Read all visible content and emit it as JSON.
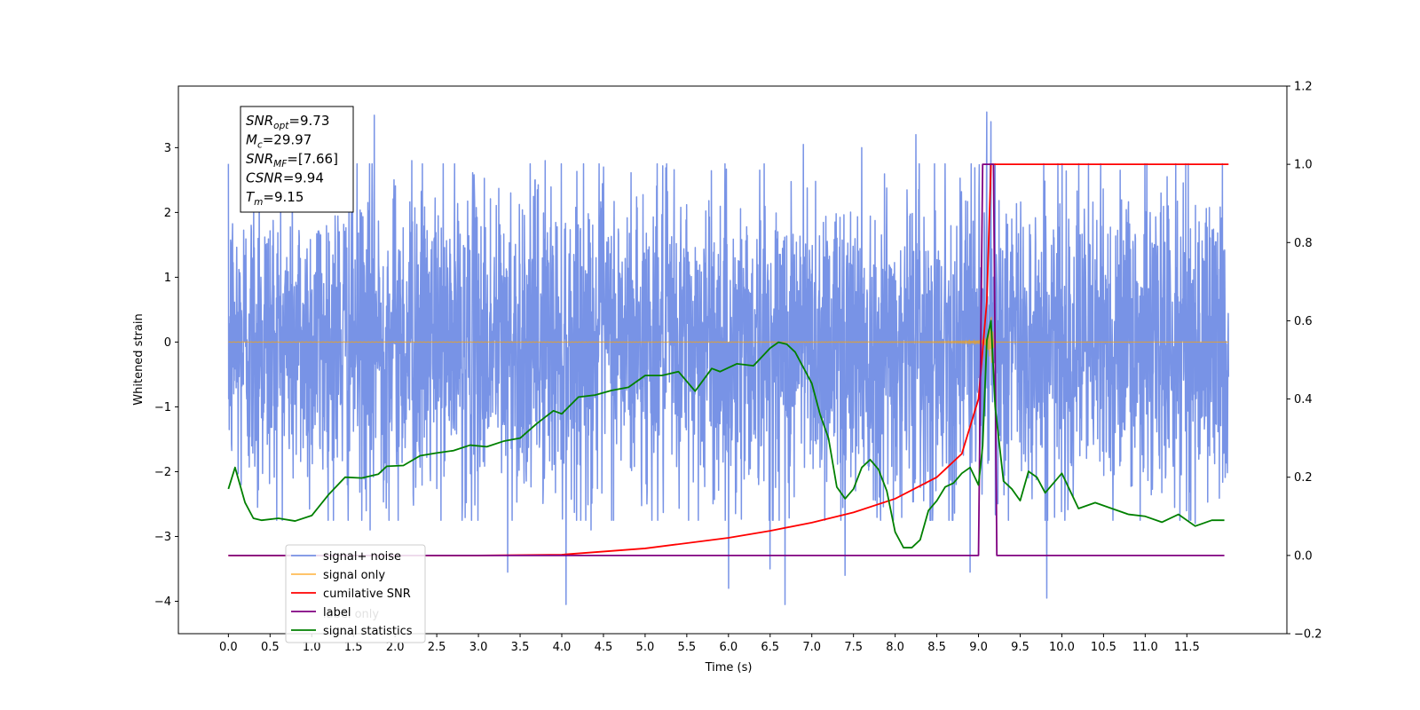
{
  "chart_data": {
    "type": "line",
    "xlabel": "Time (s)",
    "ylabel": "Whitened strain",
    "xlim": [
      -0.6,
      12.7
    ],
    "ylim": [
      -4.5,
      3.95
    ],
    "y2lim": [
      -0.2,
      1.2
    ],
    "x_ticks": [
      0.0,
      0.5,
      1.0,
      1.5,
      2.0,
      2.5,
      3.0,
      3.5,
      4.0,
      4.5,
      5.0,
      5.5,
      6.0,
      6.5,
      7.0,
      7.5,
      8.0,
      8.5,
      9.0,
      9.5,
      10.0,
      10.5,
      11.0,
      11.5
    ],
    "x_tick_labels": [
      "0.0",
      "0.5",
      "1.0",
      "1.5",
      "2.0",
      "2.5",
      "3.0",
      "3.5",
      "4.0",
      "4.5",
      "5.0",
      "5.5",
      "6.0",
      "6.5",
      "7.0",
      "7.5",
      "8.0",
      "8.5",
      "9.0",
      "9.5",
      "10.0",
      "10.5",
      "11.0",
      "11.5"
    ],
    "y_ticks": [
      -4,
      -3,
      -2,
      -1,
      0,
      1,
      2,
      3
    ],
    "y_tick_labels": [
      "−4",
      "−3",
      "−2",
      "−1",
      "0",
      "1",
      "2",
      "3"
    ],
    "y2_ticks": [
      -0.2,
      0.0,
      0.2,
      0.4,
      0.6,
      0.8,
      1.0,
      1.2
    ],
    "y2_tick_labels": [
      "−0.2",
      "0.0",
      "0.2",
      "0.4",
      "0.6",
      "0.8",
      "1.0",
      "1.2"
    ],
    "legend_position": "lower-left",
    "annotation": {
      "lines": [
        {
          "base": "SNR",
          "sub": "opt",
          "rest": "=9.73"
        },
        {
          "base": "M",
          "sub": "c",
          "rest": "=29.97"
        },
        {
          "base": "SNR",
          "sub": "MF",
          "rest": "=[7.66]"
        },
        {
          "base": "CSNR",
          "sub": "",
          "rest": "=9.94"
        },
        {
          "base": "T",
          "sub": "m",
          "rest": "=9.15"
        }
      ]
    },
    "series": [
      {
        "name": "signal+ noise",
        "axis": "left",
        "color": "#7893e6",
        "kind": "noise",
        "x_range": [
          0.0,
          12.0
        ],
        "typical_amplitude": 2.3,
        "spikes": [
          [
            0.37,
            2.6
          ],
          [
            0.35,
            -2.55
          ],
          [
            1.75,
            3.5
          ],
          [
            1.7,
            -2.9
          ],
          [
            2.2,
            2.8
          ],
          [
            3.35,
            -3.55
          ],
          [
            3.8,
            2.8
          ],
          [
            4.05,
            -4.05
          ],
          [
            4.35,
            -2.9
          ],
          [
            4.5,
            2.7
          ],
          [
            6.0,
            -3.8
          ],
          [
            6.5,
            -3.5
          ],
          [
            6.68,
            -4.05
          ],
          [
            6.9,
            3.05
          ],
          [
            7.4,
            -3.6
          ],
          [
            7.6,
            3.0
          ],
          [
            8.25,
            3.2
          ],
          [
            8.9,
            -3.55
          ],
          [
            9.1,
            3.55
          ],
          [
            9.15,
            3.4
          ],
          [
            9.82,
            -3.95
          ],
          [
            10.7,
            2.65
          ],
          [
            11.6,
            -2.8
          ]
        ]
      },
      {
        "name": "signal only",
        "axis": "left",
        "color": "#ffa500",
        "kind": "chirp",
        "x_range": [
          0.0,
          12.0
        ],
        "merger_time": 9.15,
        "peak_amplitude": 0.6
      },
      {
        "name": "cumilative SNR",
        "axis": "right",
        "color": "#ff0000",
        "x": [
          0.0,
          3.0,
          4.0,
          5.0,
          6.0,
          6.5,
          7.0,
          7.5,
          8.0,
          8.5,
          8.8,
          9.0,
          9.1,
          9.15,
          9.2,
          12.0
        ],
        "values": [
          0.0,
          0.0,
          0.002,
          0.018,
          0.045,
          0.063,
          0.084,
          0.11,
          0.145,
          0.2,
          0.26,
          0.4,
          0.65,
          1.0,
          1.0,
          1.0
        ]
      },
      {
        "name": "label",
        "axis": "right",
        "color": "#800080",
        "x": [
          0.0,
          9.0,
          9.05,
          9.18,
          9.22,
          11.95
        ],
        "values": [
          0.0,
          0.0,
          1.0,
          1.0,
          0.0,
          0.0
        ]
      },
      {
        "name": "signal statistics",
        "axis": "right",
        "color": "#008000",
        "x": [
          0.0,
          0.08,
          0.2,
          0.3,
          0.4,
          0.6,
          0.8,
          1.0,
          1.2,
          1.4,
          1.6,
          1.8,
          1.9,
          2.1,
          2.3,
          2.5,
          2.7,
          2.9,
          3.1,
          3.3,
          3.5,
          3.7,
          3.9,
          4.0,
          4.2,
          4.4,
          4.6,
          4.8,
          5.0,
          5.2,
          5.4,
          5.6,
          5.8,
          5.9,
          6.1,
          6.3,
          6.5,
          6.6,
          6.7,
          6.8,
          6.9,
          7.0,
          7.1,
          7.2,
          7.3,
          7.4,
          7.5,
          7.6,
          7.7,
          7.8,
          7.9,
          8.0,
          8.1,
          8.2,
          8.3,
          8.4,
          8.5,
          8.6,
          8.7,
          8.8,
          8.9,
          9.0,
          9.05,
          9.1,
          9.15,
          9.2,
          9.3,
          9.4,
          9.5,
          9.6,
          9.7,
          9.8,
          10.0,
          10.2,
          10.4,
          10.6,
          10.8,
          11.0,
          11.2,
          11.4,
          11.6,
          11.8,
          11.95
        ],
        "values": [
          0.17,
          0.225,
          0.135,
          0.095,
          0.09,
          0.095,
          0.088,
          0.102,
          0.155,
          0.2,
          0.198,
          0.208,
          0.228,
          0.23,
          0.255,
          0.262,
          0.268,
          0.282,
          0.278,
          0.292,
          0.3,
          0.337,
          0.37,
          0.362,
          0.405,
          0.41,
          0.422,
          0.43,
          0.46,
          0.46,
          0.47,
          0.42,
          0.478,
          0.47,
          0.49,
          0.485,
          0.53,
          0.545,
          0.54,
          0.52,
          0.48,
          0.44,
          0.36,
          0.3,
          0.175,
          0.145,
          0.17,
          0.225,
          0.245,
          0.22,
          0.165,
          0.06,
          0.02,
          0.02,
          0.04,
          0.115,
          0.14,
          0.175,
          0.185,
          0.21,
          0.225,
          0.18,
          0.28,
          0.55,
          0.6,
          0.38,
          0.19,
          0.17,
          0.14,
          0.215,
          0.2,
          0.16,
          0.21,
          0.12,
          0.135,
          0.12,
          0.105,
          0.1,
          0.085,
          0.105,
          0.075,
          0.09,
          0.09
        ]
      }
    ]
  },
  "legend": {
    "items": [
      {
        "label": "signal+ noise",
        "color": "#7893e6"
      },
      {
        "label": "signal only",
        "color": "#ffbc55"
      },
      {
        "label": "cumilative SNR",
        "color": "#ff0000"
      },
      {
        "label": "label",
        "color": "#800080"
      },
      {
        "label": "signal statistics",
        "color": "#008000"
      }
    ],
    "hidden_overlay_text": "label only"
  }
}
